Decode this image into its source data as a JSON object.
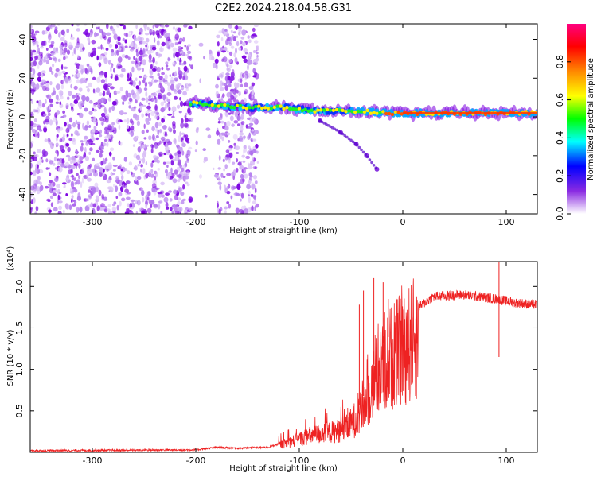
{
  "title": "C2E2.2024.218.04.58.G31",
  "chart_data": [
    {
      "type": "heatmap",
      "xlabel": "Height of straight line (km)",
      "ylabel": "Frequency (Hz)",
      "xlim": [
        -360,
        130
      ],
      "ylim": [
        -50,
        48
      ],
      "xticks": [
        -300,
        -200,
        -100,
        0,
        100
      ],
      "yticks": [
        -40,
        -20,
        0,
        20,
        40
      ],
      "colorbar": {
        "label": "Normalized spectral amplitude",
        "range": [
          0,
          1
        ],
        "ticks": [
          "0.0",
          "0.2",
          "0.4",
          "0.6",
          "0.8"
        ],
        "colormap": "rainbow"
      },
      "features": {
        "noise_region_km": [
          -360,
          -205
        ],
        "gap_km": [
          -205,
          -180
        ],
        "noise_band2_km": [
          -180,
          -140
        ],
        "signal_start_km": -205,
        "signal_trace": [
          {
            "x": -205,
            "y": 7
          },
          {
            "x": -180,
            "y": 6
          },
          {
            "x": -150,
            "y": 5
          },
          {
            "x": -120,
            "y": 5
          },
          {
            "x": -100,
            "y": 4
          },
          {
            "x": -80,
            "y": 3
          },
          {
            "x": -60,
            "y": 3
          },
          {
            "x": -40,
            "y": 3
          },
          {
            "x": -20,
            "y": 2
          },
          {
            "x": 0,
            "y": 2
          },
          {
            "x": 50,
            "y": 2
          },
          {
            "x": 90,
            "y": 2
          },
          {
            "x": 130,
            "y": 2
          }
        ],
        "descending_trace": [
          {
            "x": -80,
            "y": -2
          },
          {
            "x": -60,
            "y": -8
          },
          {
            "x": -45,
            "y": -14
          },
          {
            "x": -35,
            "y": -20
          },
          {
            "x": -25,
            "y": -27
          }
        ]
      }
    },
    {
      "type": "line",
      "xlabel": "Height of straight line (km)",
      "ylabel": "SNR (10 * v/v)",
      "scale_label": "(x10⁴)",
      "xlim": [
        -360,
        130
      ],
      "ylim": [
        0,
        2.3
      ],
      "xticks": [
        -300,
        -200,
        -100,
        0,
        100
      ],
      "yticks": [
        "0.5",
        "1.0",
        "1.5",
        "2.0"
      ],
      "ytick_values": [
        0.5,
        1.0,
        1.5,
        2.0
      ],
      "color": "#ee2222",
      "envelope": [
        {
          "x": -360,
          "y": 0.02
        },
        {
          "x": -200,
          "y": 0.03
        },
        {
          "x": -180,
          "y": 0.06
        },
        {
          "x": -160,
          "y": 0.05
        },
        {
          "x": -130,
          "y": 0.06
        },
        {
          "x": -110,
          "y": 0.15
        },
        {
          "x": -90,
          "y": 0.25
        },
        {
          "x": -70,
          "y": 0.3
        },
        {
          "x": -55,
          "y": 0.35
        },
        {
          "x": -40,
          "y": 0.6
        },
        {
          "x": -30,
          "y": 1.0
        },
        {
          "x": -20,
          "y": 1.3
        },
        {
          "x": -10,
          "y": 1.45
        },
        {
          "x": 0,
          "y": 1.55
        },
        {
          "x": 15,
          "y": 1.75
        },
        {
          "x": 30,
          "y": 1.88
        },
        {
          "x": 60,
          "y": 1.9
        },
        {
          "x": 90,
          "y": 1.85
        },
        {
          "x": 110,
          "y": 1.8
        },
        {
          "x": 130,
          "y": 1.78
        }
      ],
      "spikes": [
        {
          "x": -42,
          "y": 1.78
        },
        {
          "x": -38,
          "y": 1.95
        },
        {
          "x": -28,
          "y": 2.1
        },
        {
          "x": -19,
          "y": 2.05
        },
        {
          "x": -14,
          "y": 1.85
        },
        {
          "x": 93,
          "y": 2.3
        },
        {
          "x": 93,
          "y": 1.15
        }
      ]
    }
  ]
}
